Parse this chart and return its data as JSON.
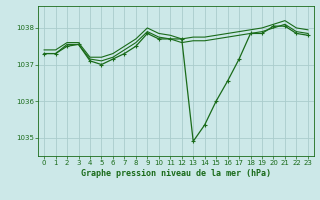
{
  "title": "Graphe pression niveau de la mer (hPa)",
  "background_color": "#cce8e8",
  "grid_color": "#aacccc",
  "line_color": "#1a6b1a",
  "xlim": [
    -0.5,
    23.5
  ],
  "ylim": [
    1034.5,
    1038.6
  ],
  "yticks": [
    1035,
    1036,
    1037,
    1038
  ],
  "xticks": [
    0,
    1,
    2,
    3,
    4,
    5,
    6,
    7,
    8,
    9,
    10,
    11,
    12,
    13,
    14,
    15,
    16,
    17,
    18,
    19,
    20,
    21,
    22,
    23
  ],
  "series": [
    [
      1037.3,
      1037.3,
      1037.5,
      1037.55,
      1037.1,
      1037.0,
      1037.15,
      1037.3,
      1037.5,
      1037.85,
      1037.7,
      1037.7,
      1037.7,
      1034.9,
      1035.35,
      1036.0,
      1036.55,
      1037.15,
      1037.85,
      1037.85,
      1038.05,
      1038.05,
      1037.85,
      1037.8
    ],
    [
      1037.3,
      1037.3,
      1037.55,
      1037.55,
      1037.15,
      1037.1,
      1037.2,
      1037.4,
      1037.6,
      1037.9,
      1037.75,
      1037.7,
      1037.6,
      1037.65,
      1037.65,
      1037.7,
      1037.75,
      1037.8,
      1037.85,
      1037.9,
      1038.0,
      1038.1,
      1037.9,
      1037.85
    ],
    [
      1037.4,
      1037.4,
      1037.6,
      1037.6,
      1037.2,
      1037.2,
      1037.3,
      1037.5,
      1037.7,
      1038.0,
      1037.85,
      1037.8,
      1037.7,
      1037.75,
      1037.75,
      1037.8,
      1037.85,
      1037.9,
      1037.95,
      1038.0,
      1038.1,
      1038.2,
      1038.0,
      1037.95
    ]
  ]
}
